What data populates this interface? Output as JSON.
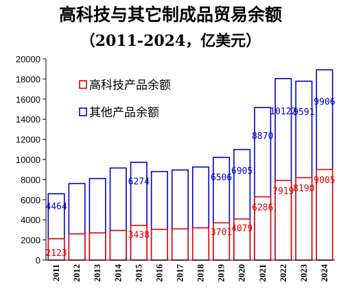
{
  "chart_data": {
    "type": "bar",
    "title": "高科技与其它制成品贸易余额",
    "subtitle": "（2011-2024，亿美元）",
    "categories": [
      "2011",
      "2012",
      "2013",
      "2014",
      "2015",
      "2016",
      "2017",
      "2018",
      "2019",
      "2020",
      "2021",
      "2022",
      "2023",
      "2024"
    ],
    "series": [
      {
        "name": "高科技产品余额",
        "stack": "bottom",
        "color": "#e00000",
        "values": [
          2123,
          2600,
          2700,
          2950,
          3438,
          3050,
          3100,
          3200,
          3701,
          4079,
          6286,
          7919,
          8190,
          9005
        ]
      },
      {
        "name": "其他产品余额",
        "stack": "top",
        "color": "#0000cc",
        "values": [
          4464,
          5000,
          5400,
          6200,
          6274,
          5750,
          5850,
          6050,
          6506,
          6905,
          8870,
          10122,
          9591,
          9906
        ]
      }
    ],
    "data_labels": [
      {
        "index": 0,
        "series": 0,
        "text": "2123"
      },
      {
        "index": 0,
        "series": 1,
        "text": "4464"
      },
      {
        "index": 4,
        "series": 0,
        "text": "3438"
      },
      {
        "index": 4,
        "series": 1,
        "text": "6274"
      },
      {
        "index": 8,
        "series": 0,
        "text": "3701"
      },
      {
        "index": 8,
        "series": 1,
        "text": "6506"
      },
      {
        "index": 9,
        "series": 0,
        "text": "4079"
      },
      {
        "index": 9,
        "series": 1,
        "text": "6905"
      },
      {
        "index": 10,
        "series": 0,
        "text": "6286"
      },
      {
        "index": 10,
        "series": 1,
        "text": "8870"
      },
      {
        "index": 11,
        "series": 0,
        "text": "7919"
      },
      {
        "index": 11,
        "series": 1,
        "text": "10122"
      },
      {
        "index": 12,
        "series": 0,
        "text": "8190"
      },
      {
        "index": 12,
        "series": 1,
        "text": "9591"
      },
      {
        "index": 13,
        "series": 0,
        "text": "9005"
      },
      {
        "index": 13,
        "series": 1,
        "text": "9906"
      }
    ],
    "yticks": [
      "0",
      "2000",
      "4000",
      "6000",
      "8000",
      "10000",
      "12000",
      "14000",
      "16000",
      "18000",
      "20000"
    ],
    "ylim": [
      0,
      20000
    ],
    "xlabel": "",
    "ylabel": "",
    "grid": false,
    "legend_position": "top-left",
    "bar_fill": "#ffffff"
  }
}
